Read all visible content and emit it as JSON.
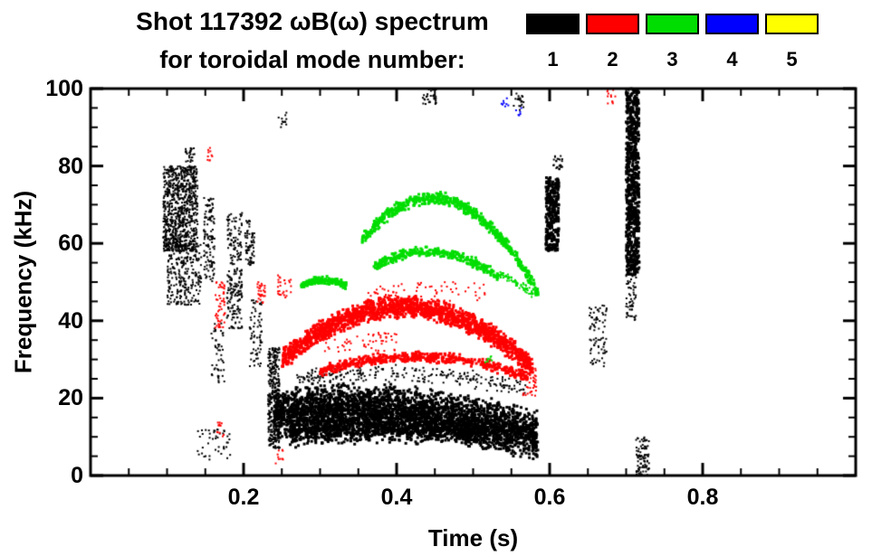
{
  "chart_data": {
    "type": "scatter",
    "title": "Shot 117392 ωB(ω) spectrum",
    "subtitle": "for toroidal mode number:",
    "xlabel": "Time (s)",
    "ylabel": "Frequency (kHz)",
    "xlim": [
      0.0,
      1.0
    ],
    "ylim": [
      0,
      100
    ],
    "xticks": [
      {
        "v": 0.2,
        "label": "0.2"
      },
      {
        "v": 0.4,
        "label": "0.4"
      },
      {
        "v": 0.6,
        "label": "0.6"
      },
      {
        "v": 0.8,
        "label": "0.8"
      }
    ],
    "yticks": [
      {
        "v": 0,
        "label": "0"
      },
      {
        "v": 20,
        "label": "20"
      },
      {
        "v": 40,
        "label": "40"
      },
      {
        "v": 60,
        "label": "60"
      },
      {
        "v": 80,
        "label": "80"
      },
      {
        "v": 100,
        "label": "100"
      }
    ],
    "x_minor_step": 0.05,
    "y_minor_step": 5,
    "grid": false,
    "legend_position": "top-right",
    "legend": [
      {
        "label": "1",
        "color": "#000000"
      },
      {
        "label": "2",
        "color": "#ff0000"
      },
      {
        "label": "3",
        "color": "#00dd00"
      },
      {
        "label": "4",
        "color": "#0000ff"
      },
      {
        "label": "5",
        "color": "#ffff00"
      }
    ],
    "series": [
      {
        "name": "n=1",
        "color": "#000000",
        "clusters": [
          {
            "kind": "blob",
            "t0": 0.095,
            "t1": 0.14,
            "f0": 58,
            "f1": 80,
            "n": 850,
            "s": 2
          },
          {
            "kind": "blob",
            "t0": 0.1,
            "t1": 0.145,
            "f0": 44,
            "f1": 60,
            "n": 260,
            "s": 2
          },
          {
            "kind": "blob",
            "t0": 0.124,
            "t1": 0.136,
            "f0": 81,
            "f1": 85,
            "n": 25,
            "s": 2
          },
          {
            "kind": "blob",
            "t0": 0.148,
            "t1": 0.162,
            "f0": 50,
            "f1": 72,
            "n": 120,
            "s": 2
          },
          {
            "kind": "blob",
            "t0": 0.178,
            "t1": 0.198,
            "f0": 38,
            "f1": 68,
            "n": 220,
            "s": 2
          },
          {
            "kind": "blob",
            "t0": 0.202,
            "t1": 0.214,
            "f0": 54,
            "f1": 66,
            "n": 70,
            "s": 2
          },
          {
            "kind": "blob",
            "t0": 0.208,
            "t1": 0.224,
            "f0": 28,
            "f1": 46,
            "n": 70,
            "s": 2
          },
          {
            "kind": "blob",
            "t0": 0.158,
            "t1": 0.175,
            "f0": 24,
            "f1": 40,
            "n": 50,
            "s": 2
          },
          {
            "kind": "blob",
            "t0": 0.14,
            "t1": 0.185,
            "f0": 4,
            "f1": 12,
            "n": 45,
            "s": 2
          },
          {
            "kind": "blob",
            "t0": 0.232,
            "t1": 0.247,
            "f0": 7,
            "f1": 33,
            "n": 330,
            "s": 2
          },
          {
            "kind": "arc",
            "t0": 0.24,
            "t1": 0.585,
            "f0": 16,
            "fc": 20,
            "f1": 10,
            "w": 7,
            "n": 3200,
            "s": 3
          },
          {
            "kind": "arc",
            "t0": 0.26,
            "t1": 0.52,
            "f0": 11,
            "fc": 13,
            "f1": 11,
            "w": 4,
            "n": 900,
            "s": 3
          },
          {
            "kind": "arc",
            "t0": 0.27,
            "t1": 0.57,
            "f0": 25,
            "fc": 29,
            "f1": 22,
            "w": 2.5,
            "n": 260,
            "s": 2
          },
          {
            "kind": "blob",
            "t0": 0.595,
            "t1": 0.612,
            "f0": 58,
            "f1": 77,
            "n": 300,
            "s": 3
          },
          {
            "kind": "blob",
            "t0": 0.605,
            "t1": 0.617,
            "f0": 79,
            "f1": 83,
            "n": 25,
            "s": 2
          },
          {
            "kind": "blob",
            "t0": 0.652,
            "t1": 0.675,
            "f0": 28,
            "f1": 44,
            "n": 80,
            "s": 2
          },
          {
            "kind": "blob",
            "t0": 0.7,
            "t1": 0.717,
            "f0": 52,
            "f1": 100,
            "n": 750,
            "s": 3
          },
          {
            "kind": "blob",
            "t0": 0.7,
            "t1": 0.713,
            "f0": 40,
            "f1": 52,
            "n": 60,
            "s": 2
          },
          {
            "kind": "blob",
            "t0": 0.713,
            "t1": 0.73,
            "f0": 0,
            "f1": 10,
            "n": 90,
            "s": 2
          },
          {
            "kind": "blob",
            "t0": 0.434,
            "t1": 0.452,
            "f0": 96,
            "f1": 100,
            "n": 35,
            "s": 2
          },
          {
            "kind": "blob",
            "t0": 0.553,
            "t1": 0.566,
            "f0": 94,
            "f1": 99,
            "n": 20,
            "s": 2
          },
          {
            "kind": "blob",
            "t0": 0.245,
            "t1": 0.256,
            "f0": 90,
            "f1": 94,
            "n": 12,
            "s": 2
          }
        ]
      },
      {
        "name": "n=2",
        "color": "#ff0000",
        "clusters": [
          {
            "kind": "arc",
            "t0": 0.25,
            "t1": 0.578,
            "f0": 30,
            "fc": 58,
            "f1": 28,
            "w": 3.2,
            "n": 1700,
            "s": 3
          },
          {
            "kind": "arc",
            "t0": 0.3,
            "t1": 0.572,
            "f0": 27,
            "fc": 35,
            "f1": 25.5,
            "w": 1.6,
            "n": 500,
            "s": 3
          },
          {
            "kind": "blob",
            "t0": 0.36,
            "t1": 0.52,
            "f0": 45,
            "f1": 50,
            "n": 70,
            "s": 2
          },
          {
            "kind": "blob",
            "t0": 0.163,
            "t1": 0.176,
            "f0": 38,
            "f1": 50,
            "n": 55,
            "s": 2
          },
          {
            "kind": "blob",
            "t0": 0.218,
            "t1": 0.23,
            "f0": 44,
            "f1": 50,
            "n": 30,
            "s": 2
          },
          {
            "kind": "blob",
            "t0": 0.243,
            "t1": 0.262,
            "f0": 46,
            "f1": 52,
            "n": 28,
            "s": 2
          },
          {
            "kind": "blob",
            "t0": 0.152,
            "t1": 0.159,
            "f0": 81,
            "f1": 85,
            "n": 10,
            "s": 2
          },
          {
            "kind": "blob",
            "t0": 0.165,
            "t1": 0.176,
            "f0": 10,
            "f1": 14,
            "n": 12,
            "s": 2
          },
          {
            "kind": "blob",
            "t0": 0.242,
            "t1": 0.252,
            "f0": 3,
            "f1": 7,
            "n": 10,
            "s": 2
          },
          {
            "kind": "blob",
            "t0": 0.675,
            "t1": 0.686,
            "f0": 96,
            "f1": 100,
            "n": 12,
            "s": 2
          },
          {
            "kind": "blob",
            "t0": 0.3,
            "t1": 0.4,
            "f0": 32,
            "f1": 37,
            "n": 60,
            "s": 2
          },
          {
            "kind": "blob",
            "t0": 0.565,
            "t1": 0.585,
            "f0": 20,
            "f1": 28,
            "n": 40,
            "s": 2
          }
        ]
      },
      {
        "name": "n=3",
        "color": "#00dd00",
        "clusters": [
          {
            "kind": "arc",
            "t0": 0.355,
            "t1": 0.585,
            "f0": 61,
            "fc": 88,
            "f1": 47,
            "w": 1.8,
            "n": 620,
            "s": 3
          },
          {
            "kind": "arc",
            "t0": 0.37,
            "t1": 0.535,
            "f0": 54,
            "fc": 63,
            "f1": 51,
            "w": 1.5,
            "n": 300,
            "s": 3
          },
          {
            "kind": "arc",
            "t0": 0.535,
            "t1": 0.578,
            "f0": 52,
            "fc": 50,
            "f1": 47,
            "w": 1.2,
            "n": 70,
            "s": 2
          },
          {
            "kind": "arc",
            "t0": 0.275,
            "t1": 0.335,
            "f0": 49,
            "fc": 52,
            "f1": 49,
            "w": 1.2,
            "n": 150,
            "s": 3
          },
          {
            "kind": "blob",
            "t0": 0.515,
            "t1": 0.525,
            "f0": 29,
            "f1": 31,
            "n": 8,
            "s": 2
          }
        ]
      },
      {
        "name": "n=4",
        "color": "#0000ff",
        "clusters": [
          {
            "kind": "blob",
            "t0": 0.535,
            "t1": 0.546,
            "f0": 95,
            "f1": 97.5,
            "n": 8,
            "s": 2
          },
          {
            "kind": "blob",
            "t0": 0.556,
            "t1": 0.566,
            "f0": 93,
            "f1": 95,
            "n": 6,
            "s": 2
          }
        ]
      },
      {
        "name": "n=5",
        "color": "#ffff00",
        "clusters": []
      }
    ]
  }
}
